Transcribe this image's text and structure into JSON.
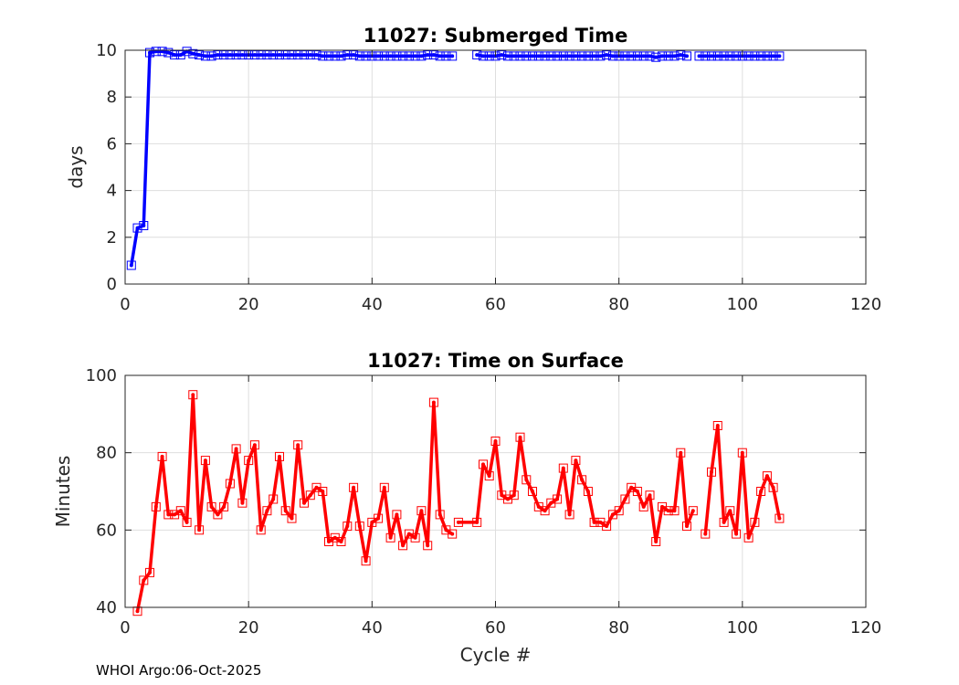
{
  "chart_data": [
    {
      "type": "line",
      "title": "11027: Submerged Time",
      "xlabel": "",
      "ylabel": "days",
      "xlim": [
        0,
        120
      ],
      "ylim": [
        0,
        10
      ],
      "xticks": [
        0,
        20,
        40,
        60,
        80,
        100,
        120
      ],
      "yticks": [
        0,
        2,
        4,
        6,
        8,
        10
      ],
      "grid": true,
      "marker": "square",
      "color": "#0000ff",
      "series": [
        {
          "name": "Submerged Time",
          "segments": [
            {
              "x": [
                1,
                2,
                3,
                4,
                5,
                6,
                7,
                8,
                9,
                10,
                11,
                12,
                13,
                14,
                15,
                16,
                17,
                18,
                19,
                20,
                21,
                22,
                23,
                24,
                25,
                26,
                27,
                28,
                29,
                30,
                31,
                32,
                33,
                34,
                35,
                36,
                37,
                38,
                39,
                40,
                41,
                42,
                43,
                44,
                45,
                46,
                47,
                48,
                49,
                50,
                51,
                52,
                53
              ],
              "y": [
                0.8,
                2.4,
                2.5,
                9.9,
                9.95,
                9.95,
                9.9,
                9.8,
                9.8,
                9.95,
                9.85,
                9.8,
                9.75,
                9.75,
                9.8,
                9.8,
                9.8,
                9.8,
                9.8,
                9.8,
                9.8,
                9.8,
                9.8,
                9.8,
                9.8,
                9.8,
                9.8,
                9.8,
                9.8,
                9.8,
                9.8,
                9.75,
                9.75,
                9.75,
                9.75,
                9.8,
                9.8,
                9.75,
                9.75,
                9.75,
                9.75,
                9.75,
                9.75,
                9.75,
                9.75,
                9.75,
                9.75,
                9.75,
                9.8,
                9.8,
                9.75,
                9.75,
                9.75
              ]
            },
            {
              "x": [
                57,
                58,
                59,
                60,
                61,
                62,
                63,
                64,
                65,
                66,
                67,
                68,
                69,
                70,
                71,
                72,
                73,
                74,
                75,
                76,
                77,
                78,
                79,
                80,
                81,
                82,
                83,
                84,
                85,
                86,
                87,
                88,
                89,
                90,
                91
              ],
              "y": [
                9.8,
                9.75,
                9.75,
                9.75,
                9.8,
                9.75,
                9.75,
                9.75,
                9.75,
                9.75,
                9.75,
                9.75,
                9.75,
                9.75,
                9.75,
                9.75,
                9.75,
                9.75,
                9.75,
                9.75,
                9.75,
                9.8,
                9.75,
                9.75,
                9.75,
                9.75,
                9.75,
                9.75,
                9.75,
                9.7,
                9.75,
                9.75,
                9.75,
                9.8,
                9.75
              ]
            },
            {
              "x": [
                93,
                94,
                95,
                96,
                97,
                98,
                99,
                100,
                101,
                102,
                103,
                104,
                105,
                106
              ],
              "y": [
                9.75,
                9.75,
                9.75,
                9.75,
                9.75,
                9.75,
                9.75,
                9.75,
                9.75,
                9.75,
                9.75,
                9.75,
                9.75,
                9.75
              ]
            }
          ]
        }
      ]
    },
    {
      "type": "line",
      "title": "11027: Time on Surface",
      "xlabel": "Cycle #",
      "ylabel": "Minutes",
      "xlim": [
        0,
        120
      ],
      "ylim": [
        40,
        100
      ],
      "xticks": [
        0,
        20,
        40,
        60,
        80,
        100,
        120
      ],
      "yticks": [
        40,
        60,
        80,
        100
      ],
      "grid": true,
      "marker": "square",
      "color": "#ff0000",
      "series": [
        {
          "name": "Time on Surface",
          "segments": [
            {
              "x": [
                2,
                3,
                4,
                5,
                6,
                7,
                8,
                9,
                10,
                11,
                12,
                13,
                14,
                15,
                16,
                17,
                18,
                19,
                20,
                21,
                22,
                23,
                24,
                25,
                26,
                27,
                28,
                29,
                30,
                31,
                32,
                33,
                34,
                35,
                36,
                37,
                38,
                39,
                40,
                41,
                42,
                43,
                44,
                45,
                46,
                47,
                48,
                49,
                50,
                51,
                52,
                53
              ],
              "y": [
                39,
                47,
                49,
                66,
                79,
                64,
                64,
                65,
                62,
                95,
                60,
                78,
                66,
                64,
                66,
                72,
                81,
                67,
                78,
                82,
                60,
                65,
                68,
                79,
                65,
                63,
                82,
                67,
                69,
                71,
                70,
                57,
                58,
                57,
                61,
                71,
                61,
                52,
                62,
                63,
                71,
                58,
                64,
                56,
                59,
                58,
                65,
                56,
                93,
                64,
                60,
                59
              ]
            },
            {
              "x": [
                54,
                57,
                58,
                59,
                60,
                61,
                62,
                63,
                64,
                65,
                66,
                67,
                68,
                69,
                70,
                71,
                72,
                73,
                74,
                75,
                76,
                77,
                78,
                79,
                80,
                81,
                82,
                83,
                84,
                85,
                86,
                87,
                88,
                89,
                90,
                91,
                92
              ],
              "y": [
                62,
                62,
                77,
                74,
                83,
                69,
                68,
                69,
                84,
                73,
                70,
                66,
                65,
                67,
                68,
                76,
                64,
                78,
                73,
                70,
                62,
                62,
                61,
                64,
                65,
                68,
                71,
                70,
                66,
                69,
                57,
                66,
                65,
                65,
                80,
                61,
                65
              ]
            },
            {
              "x": [
                94,
                95,
                96,
                97,
                98,
                99,
                100,
                101,
                102,
                103,
                104,
                105,
                106
              ],
              "y": [
                59,
                75,
                87,
                62,
                65,
                59,
                80,
                58,
                62,
                70,
                74,
                71,
                63
              ]
            }
          ]
        }
      ]
    }
  ],
  "footer": {
    "text": "WHOI Argo:06-Oct-2025"
  }
}
